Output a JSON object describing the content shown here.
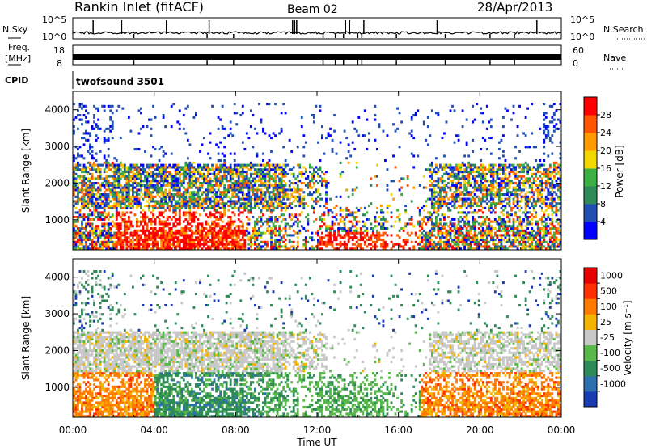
{
  "header": {
    "site": "Rankin Inlet (fitACF)",
    "beam": "Beam 02",
    "date": "28/Apr/2013"
  },
  "top_panels": {
    "nsky_label": "N.Sky",
    "nsky_ticks": [
      "10^5",
      "10^0"
    ],
    "nsearch_label": "N.Search",
    "nsearch_ticks": [
      "10^5",
      "10^0"
    ],
    "freq_label_1": "Freq.",
    "freq_label_2": "[MHz]",
    "freq_ticks": [
      "18",
      "8"
    ],
    "nave_label": "Nave",
    "nave_ticks": [
      "60",
      "0"
    ],
    "cpid_label": "CPID",
    "cpid_value": "twofsound 3501"
  },
  "chart_data": [
    {
      "type": "heatmap",
      "name": "power",
      "ylabel": "Slant Range [km]",
      "yticks": [
        1000,
        2000,
        3000,
        4000
      ],
      "ylim": [
        180,
        4500
      ],
      "xlim": [
        0,
        24
      ],
      "colorbar_label": "Power [dB]",
      "colorbar_ticks": [
        "28",
        "24",
        "20",
        "16",
        "12",
        "8",
        "4"
      ],
      "colors": [
        "#0000ff",
        "#1f4fb3",
        "#2e8b57",
        "#3cb043",
        "#f2d800",
        "#ff9a00",
        "#ff5500",
        "#ff0000"
      ]
    },
    {
      "type": "heatmap",
      "name": "velocity",
      "ylabel": "Slant Range [km]",
      "yticks": [
        1000,
        2000,
        3000,
        4000
      ],
      "ylim": [
        180,
        4500
      ],
      "xlim": [
        0,
        24
      ],
      "colorbar_label": "Velocity [m s⁻¹]",
      "colorbar_ticks": [
        "1000",
        "500",
        "100",
        "25",
        "-25",
        "-100",
        "-500",
        "-1000"
      ],
      "colors": [
        "#1a3cb3",
        "#2e6fb0",
        "#2e8b57",
        "#58b84a",
        "#c8c8c8",
        "#f2b400",
        "#ff7a00",
        "#ff3000",
        "#e60000"
      ]
    }
  ],
  "xaxis": {
    "label": "Time UT",
    "ticks": [
      "00:00",
      "04:00",
      "08:00",
      "12:00",
      "16:00",
      "20:00",
      "00:00"
    ]
  }
}
